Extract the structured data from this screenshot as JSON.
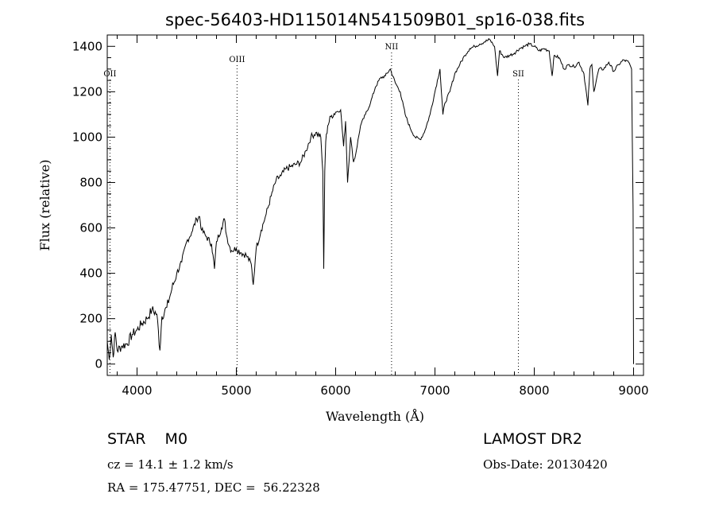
{
  "chart_data": {
    "type": "line",
    "title": "spec-56403-HD115014N541509B01_sp16-038.fits",
    "xlabel": "Wavelength (Å)",
    "ylabel": "Flux (relative)",
    "xlim": [
      3700,
      9100
    ],
    "ylim": [
      -50,
      1450
    ],
    "xticks": [
      4000,
      5000,
      6000,
      7000,
      8000,
      9000
    ],
    "yticks": [
      0,
      200,
      400,
      600,
      800,
      1000,
      1200,
      1400
    ],
    "grid": false,
    "legend": "none",
    "series": [
      {
        "x": [
          3700,
          3720,
          3740,
          3760,
          3780,
          3800,
          3850,
          3900,
          3950,
          4000,
          4050,
          4100,
          4150,
          4200,
          4230,
          4250,
          4300,
          4350,
          4400,
          4450,
          4500,
          4550,
          4600,
          4630,
          4650,
          4700,
          4750,
          4780,
          4800,
          4850,
          4880,
          4900,
          4930,
          4950,
          5000,
          5050,
          5100,
          5150,
          5170,
          5190,
          5200,
          5250,
          5300,
          5350,
          5400,
          5450,
          5500,
          5550,
          5600,
          5650,
          5700,
          5750,
          5800,
          5850,
          5870,
          5880,
          5890,
          5900,
          5920,
          5950,
          6000,
          6050,
          6080,
          6100,
          6120,
          6150,
          6180,
          6200,
          6250,
          6300,
          6350,
          6400,
          6450,
          6500,
          6550,
          6600,
          6650,
          6700,
          6750,
          6800,
          6850,
          6880,
          6900,
          6950,
          7000,
          7050,
          7080,
          7100,
          7150,
          7200,
          7250,
          7300,
          7350,
          7400,
          7450,
          7500,
          7550,
          7600,
          7630,
          7650,
          7700,
          7750,
          7800,
          7850,
          7900,
          7950,
          8000,
          8050,
          8100,
          8150,
          8180,
          8200,
          8250,
          8300,
          8350,
          8400,
          8450,
          8500,
          8540,
          8560,
          8580,
          8600,
          8650,
          8700,
          8750,
          8800,
          8850,
          8900,
          8950,
          8980,
          8995,
          9000
        ],
        "values": [
          100,
          20,
          130,
          30,
          140,
          60,
          80,
          90,
          130,
          150,
          180,
          200,
          240,
          220,
          60,
          210,
          250,
          330,
          400,
          450,
          540,
          580,
          640,
          650,
          590,
          560,
          530,
          420,
          540,
          600,
          640,
          570,
          520,
          500,
          510,
          490,
          480,
          440,
          350,
          460,
          510,
          590,
          660,
          740,
          810,
          830,
          860,
          870,
          880,
          890,
          940,
          1000,
          1020,
          1000,
          850,
          420,
          850,
          980,
          1050,
          1090,
          1110,
          1120,
          960,
          1070,
          800,
          1000,
          890,
          920,
          1050,
          1100,
          1150,
          1220,
          1260,
          1270,
          1300,
          1240,
          1200,
          1100,
          1040,
          1000,
          990,
          1010,
          1030,
          1100,
          1200,
          1300,
          1100,
          1150,
          1200,
          1280,
          1320,
          1360,
          1390,
          1400,
          1410,
          1420,
          1430,
          1400,
          1270,
          1380,
          1350,
          1360,
          1370,
          1390,
          1400,
          1410,
          1400,
          1380,
          1390,
          1380,
          1270,
          1360,
          1350,
          1300,
          1320,
          1310,
          1330,
          1280,
          1140,
          1300,
          1320,
          1200,
          1300,
          1300,
          1330,
          1290,
          1320,
          1340,
          1330,
          1300,
          680,
          0
        ]
      }
    ],
    "annotations": [
      {
        "label": "OII",
        "x": 3727
      },
      {
        "label": "OIII",
        "x": 5007
      },
      {
        "label": "NII",
        "x": 6563
      },
      {
        "label": "SII",
        "x": 7840
      }
    ]
  },
  "info": {
    "object_class": "STAR    M0",
    "survey": "LAMOST DR2",
    "redshift": "cz = 14.1 ± 1.2 km/s",
    "obs_date": "Obs-Date: 20130420",
    "coords": "RA = 175.47751, DEC =  56.22328"
  }
}
